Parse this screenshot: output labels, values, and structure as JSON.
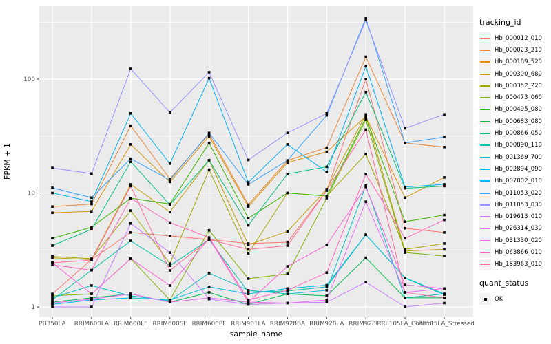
{
  "chart_data": {
    "type": "line",
    "title": "",
    "xlabel": "sample_name",
    "ylabel": "FPKM + 1",
    "y_scale": "log10",
    "y_ticks": [
      1,
      10,
      100
    ],
    "y_minor_ticks": [
      3.1623,
      31.623,
      316.23
    ],
    "y_range_approx": [
      0.82,
      430
    ],
    "grid": true,
    "panel_bg": "#EBEBEB",
    "grid_color": "#FFFFFF",
    "axis_text_color": "#4D4D4D",
    "marker": "black-square",
    "legend_position": "right",
    "categories": [
      "PB350LA",
      "RRIM600LA",
      "RRIM600LE",
      "RRIM600SE",
      "RRIM600PE",
      "RRIM901LA",
      "RRIM928BA",
      "RRIM928LA",
      "RRIM928LE",
      "RRII105LA_Control",
      "RRII105LA_Stressed"
    ],
    "series": [
      {
        "name": "Hb_000012_010",
        "color": "#F8766D",
        "values": [
          1.3,
          2.6,
          4.5,
          4.2,
          3.9,
          3.6,
          3.7,
          10.5,
          100,
          4.9,
          4.5
        ]
      },
      {
        "name": "Hb_000023_210",
        "color": "#EA8331",
        "values": [
          7.6,
          8.0,
          39,
          13.3,
          33,
          7.9,
          19.3,
          25,
          157,
          27.5,
          25.3
        ]
      },
      {
        "name": "Hb_000189_520",
        "color": "#D89000",
        "values": [
          6.7,
          6.9,
          26.7,
          12.5,
          31.5,
          7.6,
          18.5,
          23,
          47,
          9.1,
          13.7
        ]
      },
      {
        "name": "Hb_000300_680",
        "color": "#C09B00",
        "values": [
          2.7,
          2.6,
          11.9,
          6.8,
          19.4,
          3.5,
          4.6,
          10.8,
          49,
          3.1,
          3.2
        ]
      },
      {
        "name": "Hb_000352_220",
        "color": "#A3A500",
        "values": [
          2.77,
          2.65,
          7.0,
          2.4,
          16,
          2.95,
          10,
          9.4,
          22,
          3.2,
          3.6
        ]
      },
      {
        "name": "Hb_000473_060",
        "color": "#7CAE00",
        "values": [
          1.25,
          1.3,
          2.65,
          1.15,
          4.7,
          1.77,
          1.95,
          9.0,
          44,
          3.0,
          2.8
        ]
      },
      {
        "name": "Hb_000495_080",
        "color": "#39B600",
        "values": [
          4.0,
          5.0,
          9.0,
          8.0,
          27.4,
          6.0,
          10,
          9.4,
          46,
          5.6,
          6.4
        ]
      },
      {
        "name": "Hb_000683_080",
        "color": "#00BB4E",
        "values": [
          1.1,
          1.2,
          1.3,
          1.1,
          1.34,
          1.05,
          1.3,
          1.25,
          2.7,
          1.2,
          1.2
        ]
      },
      {
        "name": "Hb_000866_050",
        "color": "#00BF7D",
        "values": [
          3.45,
          4.8,
          18.8,
          7.9,
          19.4,
          5.2,
          14.7,
          17,
          77,
          11,
          11.5
        ]
      },
      {
        "name": "Hb_000890_110",
        "color": "#00C1A3",
        "values": [
          1.15,
          2.1,
          3.8,
          2.3,
          3.9,
          1.35,
          1.38,
          1.5,
          4.3,
          1.79,
          1.28
        ]
      },
      {
        "name": "Hb_001369_700",
        "color": "#00BFC4",
        "values": [
          1.2,
          1.54,
          1.25,
          1.13,
          1.98,
          1.4,
          1.3,
          1.4,
          11.6,
          1.2,
          1.3
        ]
      },
      {
        "name": "Hb_002894_090",
        "color": "#00BAE0",
        "values": [
          1.05,
          1.15,
          1.2,
          1.15,
          1.5,
          1.3,
          1.45,
          1.55,
          4.3,
          1.8,
          1.3
        ]
      },
      {
        "name": "Hb_007002_010",
        "color": "#00B0F6",
        "values": [
          10,
          8.4,
          50,
          18.1,
          102,
          12.4,
          26.7,
          15.3,
          130,
          11.3,
          11.9
        ]
      },
      {
        "name": "Hb_011053_020",
        "color": "#35A2FF",
        "values": [
          11.1,
          9.1,
          20,
          13,
          33.7,
          11.9,
          19.3,
          48,
          345,
          27.5,
          31
        ]
      },
      {
        "name": "Hb_011053_030",
        "color": "#9590FF",
        "values": [
          16.6,
          14.8,
          123,
          51,
          115,
          19.5,
          33.7,
          50,
          330,
          37,
          49
        ]
      },
      {
        "name": "Hb_019613_010",
        "color": "#C77CFF",
        "values": [
          1.0,
          1.0,
          5.4,
          3.0,
          1.17,
          1.05,
          1.08,
          1.1,
          1.65,
          1.0,
          1.08
        ]
      },
      {
        "name": "Hb_026314_030",
        "color": "#E76BF3",
        "values": [
          1.08,
          1.17,
          1.3,
          1.1,
          1.2,
          1.1,
          1.08,
          1.15,
          8.4,
          1.34,
          1.45
        ]
      },
      {
        "name": "Hb_031330_020",
        "color": "#FA62DB",
        "values": [
          2.44,
          1.3,
          2.65,
          1.54,
          4.0,
          1.1,
          2.27,
          3.5,
          11.3,
          1.56,
          1.45
        ]
      },
      {
        "name": "Hb_063866_010",
        "color": "#FF62BC",
        "values": [
          2.34,
          2.1,
          9.0,
          5.5,
          4.07,
          1.15,
          1.4,
          2.0,
          14.7,
          4.0,
          5.8
        ]
      },
      {
        "name": "Hb_183963_010",
        "color": "#FF6A98",
        "values": [
          2.44,
          2.57,
          11.5,
          2.09,
          3.9,
          3.2,
          3.45,
          10.5,
          36,
          1.34,
          1.2
        ]
      }
    ],
    "legend": {
      "tracking_title": "tracking_id",
      "quant_title": "quant_status",
      "quant_label": "OK"
    }
  }
}
